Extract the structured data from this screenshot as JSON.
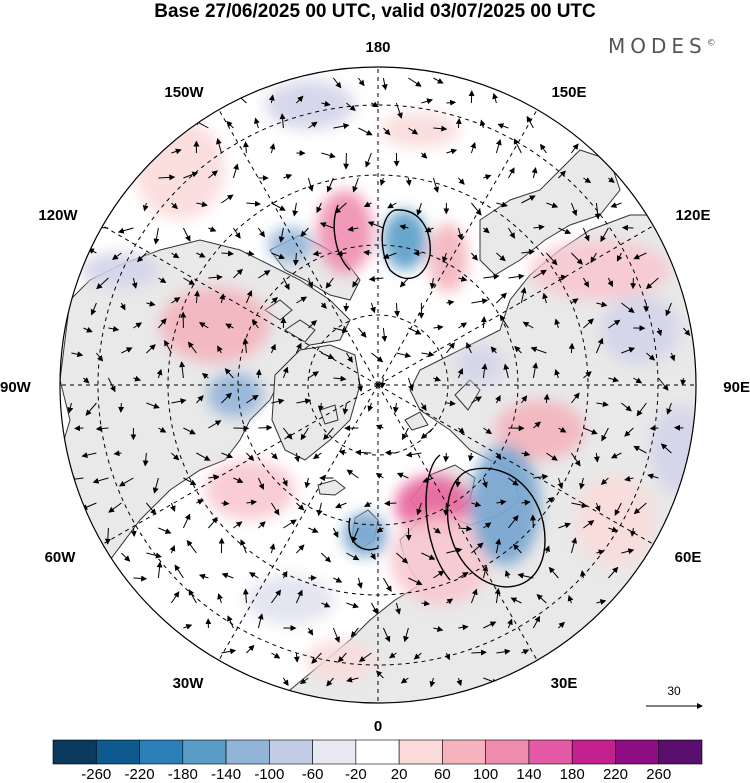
{
  "title": "Base 27/06/2025 00 UTC, valid 03/07/2025 00 UTC",
  "brand": {
    "name": "MODES",
    "mark": "©"
  },
  "longitude_labels": {
    "top": "180",
    "bottom": "0",
    "left": "90W",
    "right": "90E",
    "upper_left": "150W",
    "upper_right": "150E",
    "mid_upper_left": "120W",
    "mid_upper_right": "120E",
    "mid_lower_left": "60W",
    "mid_lower_right": "60E",
    "lower_left": "30W",
    "lower_right": "30E"
  },
  "reference_vector": {
    "label": "30"
  },
  "colorbar": {
    "colors": [
      "#0b3a5e",
      "#0e5a8f",
      "#2a7fb8",
      "#5a9cc8",
      "#92b4d8",
      "#c4cde6",
      "#e8e8f2",
      "#ffffff",
      "#fbdada",
      "#f6b3be",
      "#f08cb0",
      "#e45aa6",
      "#c4208e",
      "#8e0c84",
      "#5a0f6e"
    ],
    "ticks": [
      "-260",
      "-220",
      "-180",
      "-140",
      "-100",
      "-60",
      "-20",
      "20",
      "60",
      "100",
      "140",
      "180",
      "220",
      "260"
    ]
  },
  "map": {
    "ocean_color": "#ffffff",
    "land_color": "#e9e9e9",
    "coast_color": "#333333",
    "grid_color": "#000000"
  }
}
